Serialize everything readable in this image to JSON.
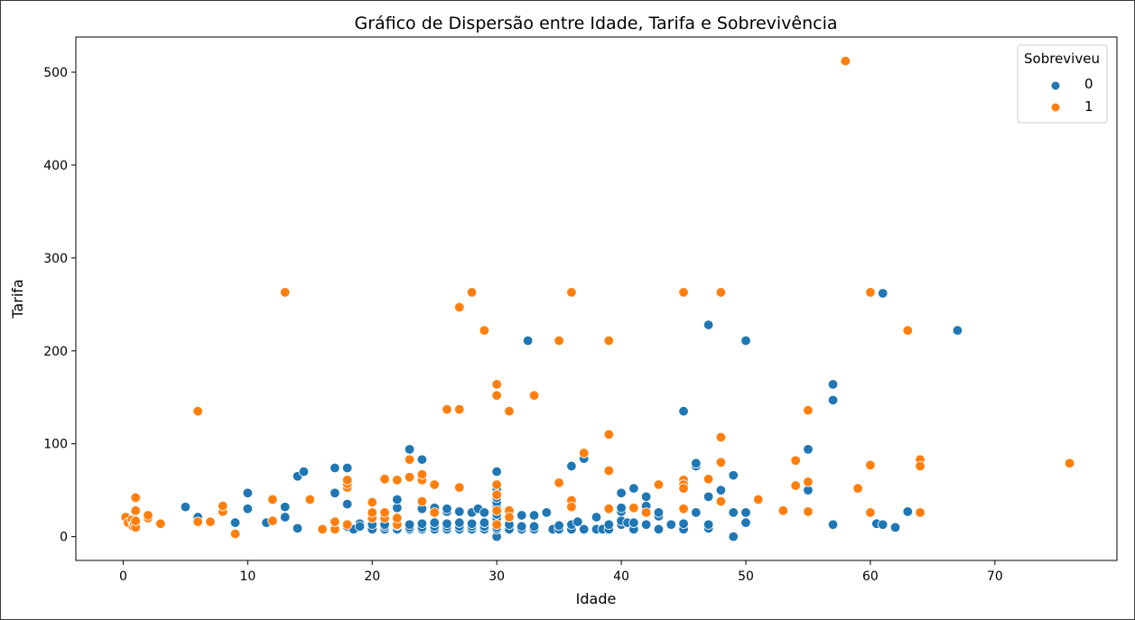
{
  "chart_data": {
    "type": "scatter",
    "title": "Gráfico de Dispersão entre Idade, Tarifa e Sobrevivência",
    "xlabel": "Idade",
    "ylabel": "Tarifa",
    "xlim": [
      -3.8,
      79.8
    ],
    "ylim": [
      -25.6,
      537.9
    ],
    "xticks": [
      0,
      10,
      20,
      30,
      40,
      50,
      60,
      70
    ],
    "yticks": [
      0,
      100,
      200,
      300,
      400,
      500
    ],
    "grid": false,
    "legend": {
      "title": "Sobreviveu",
      "placement": "top-right",
      "entries": [
        "0",
        "1"
      ]
    },
    "series": [
      {
        "name": "0",
        "color": "#1f77b4",
        "points": [
          [
            5,
            32
          ],
          [
            6,
            21
          ],
          [
            9,
            15
          ],
          [
            10,
            30
          ],
          [
            10,
            47
          ],
          [
            11.5,
            15
          ],
          [
            13,
            21
          ],
          [
            13,
            32
          ],
          [
            14,
            9
          ],
          [
            14,
            65
          ],
          [
            14.5,
            70
          ],
          [
            17,
            47
          ],
          [
            17,
            74
          ],
          [
            18,
            74
          ],
          [
            18,
            35
          ],
          [
            18,
            11
          ],
          [
            18.5,
            8
          ],
          [
            19,
            14
          ],
          [
            19,
            11
          ],
          [
            20,
            8
          ],
          [
            20,
            13
          ],
          [
            21,
            8
          ],
          [
            21,
            11
          ],
          [
            21,
            13
          ],
          [
            22,
            8
          ],
          [
            22,
            12
          ],
          [
            22,
            31
          ],
          [
            22,
            40
          ],
          [
            23,
            8
          ],
          [
            23,
            10
          ],
          [
            23,
            13
          ],
          [
            23,
            94
          ],
          [
            24,
            8
          ],
          [
            24,
            10
          ],
          [
            24,
            14
          ],
          [
            24,
            30
          ],
          [
            24,
            83
          ],
          [
            25,
            8
          ],
          [
            25,
            11
          ],
          [
            25,
            15
          ],
          [
            25,
            31
          ],
          [
            26,
            8
          ],
          [
            26,
            11
          ],
          [
            26,
            14
          ],
          [
            26,
            27
          ],
          [
            26,
            30
          ],
          [
            27,
            8
          ],
          [
            27,
            11
          ],
          [
            27,
            15
          ],
          [
            27,
            27
          ],
          [
            28,
            8
          ],
          [
            28,
            11
          ],
          [
            28,
            14
          ],
          [
            28,
            26
          ],
          [
            28.5,
            30
          ],
          [
            29,
            8
          ],
          [
            29,
            11
          ],
          [
            29,
            15
          ],
          [
            29,
            26
          ],
          [
            30,
            0
          ],
          [
            30,
            8
          ],
          [
            30,
            10
          ],
          [
            30,
            13
          ],
          [
            30,
            16
          ],
          [
            30,
            20
          ],
          [
            30,
            24
          ],
          [
            30,
            28
          ],
          [
            30,
            33
          ],
          [
            30,
            37
          ],
          [
            30,
            42
          ],
          [
            30,
            47
          ],
          [
            30,
            52
          ],
          [
            30,
            70
          ],
          [
            31,
            8
          ],
          [
            31,
            13
          ],
          [
            31,
            21
          ],
          [
            32,
            8
          ],
          [
            32,
            11
          ],
          [
            32,
            23
          ],
          [
            32.5,
            211
          ],
          [
            33,
            8
          ],
          [
            33,
            11
          ],
          [
            33,
            23
          ],
          [
            34,
            26
          ],
          [
            34.5,
            8
          ],
          [
            35,
            8
          ],
          [
            35,
            12
          ],
          [
            36,
            8
          ],
          [
            36,
            13
          ],
          [
            36,
            76
          ],
          [
            36.5,
            16
          ],
          [
            37,
            8
          ],
          [
            37,
            84
          ],
          [
            38,
            8
          ],
          [
            38,
            21
          ],
          [
            38.5,
            8
          ],
          [
            39,
            8
          ],
          [
            39,
            13
          ],
          [
            40,
            13
          ],
          [
            40,
            17
          ],
          [
            40,
            27
          ],
          [
            40,
            31
          ],
          [
            40,
            47
          ],
          [
            40.5,
            15
          ],
          [
            41,
            8
          ],
          [
            41,
            15
          ],
          [
            41,
            52
          ],
          [
            42,
            13
          ],
          [
            42,
            33
          ],
          [
            42,
            43
          ],
          [
            43,
            8
          ],
          [
            43,
            22
          ],
          [
            43,
            26
          ],
          [
            44,
            13
          ],
          [
            45,
            8
          ],
          [
            45,
            14
          ],
          [
            45,
            135
          ],
          [
            46,
            26
          ],
          [
            46,
            76
          ],
          [
            46,
            79
          ],
          [
            47,
            9
          ],
          [
            47,
            13
          ],
          [
            47,
            43
          ],
          [
            47,
            228
          ],
          [
            48,
            50
          ],
          [
            49,
            0
          ],
          [
            49,
            26
          ],
          [
            49,
            66
          ],
          [
            50,
            15
          ],
          [
            50,
            26
          ],
          [
            50,
            211
          ],
          [
            55,
            50
          ],
          [
            55,
            94
          ],
          [
            57,
            13
          ],
          [
            57,
            147
          ],
          [
            57,
            164
          ],
          [
            60.5,
            14
          ],
          [
            61,
            13
          ],
          [
            61,
            262
          ],
          [
            62,
            10
          ],
          [
            63,
            27
          ],
          [
            67,
            222
          ]
        ]
      },
      {
        "name": "1",
        "color": "#ff7f0e",
        "points": [
          [
            0.2,
            21
          ],
          [
            0.4,
            15
          ],
          [
            0.7,
            18
          ],
          [
            0.8,
            13
          ],
          [
            0.8,
            11
          ],
          [
            0.9,
            14
          ],
          [
            1,
            10
          ],
          [
            1,
            17
          ],
          [
            1,
            28
          ],
          [
            1,
            42
          ],
          [
            2,
            20
          ],
          [
            2,
            23
          ],
          [
            3,
            14
          ],
          [
            6,
            16
          ],
          [
            6,
            135
          ],
          [
            7,
            16
          ],
          [
            8,
            27
          ],
          [
            8,
            33
          ],
          [
            9,
            3
          ],
          [
            12,
            17
          ],
          [
            12,
            40
          ],
          [
            13,
            263
          ],
          [
            15,
            40
          ],
          [
            16,
            8
          ],
          [
            17,
            8
          ],
          [
            17,
            16
          ],
          [
            18,
            13
          ],
          [
            18,
            53
          ],
          [
            18,
            57
          ],
          [
            18,
            61
          ],
          [
            20,
            20
          ],
          [
            20,
            26
          ],
          [
            20,
            37
          ],
          [
            21,
            20
          ],
          [
            21,
            26
          ],
          [
            21,
            62
          ],
          [
            22,
            13
          ],
          [
            22,
            20
          ],
          [
            22,
            61
          ],
          [
            23,
            64
          ],
          [
            23,
            83
          ],
          [
            24,
            38
          ],
          [
            24,
            61
          ],
          [
            24,
            67
          ],
          [
            25,
            26
          ],
          [
            25,
            56
          ],
          [
            26,
            137
          ],
          [
            27,
            247
          ],
          [
            27,
            137
          ],
          [
            27,
            53
          ],
          [
            28,
            263
          ],
          [
            29,
            222
          ],
          [
            30,
            13
          ],
          [
            30,
            28
          ],
          [
            30,
            45
          ],
          [
            30,
            56
          ],
          [
            30,
            152
          ],
          [
            30,
            164
          ],
          [
            31,
            135
          ],
          [
            31,
            28
          ],
          [
            31,
            21
          ],
          [
            33,
            152
          ],
          [
            35,
            58
          ],
          [
            35,
            211
          ],
          [
            36,
            263
          ],
          [
            36,
            39
          ],
          [
            36,
            32
          ],
          [
            37,
            90
          ],
          [
            39,
            211
          ],
          [
            39,
            110
          ],
          [
            39,
            71
          ],
          [
            39,
            30
          ],
          [
            41,
            31
          ],
          [
            42,
            26
          ],
          [
            43,
            56
          ],
          [
            45,
            263
          ],
          [
            45,
            61
          ],
          [
            45,
            56
          ],
          [
            45,
            52
          ],
          [
            45,
            30
          ],
          [
            47,
            62
          ],
          [
            48,
            263
          ],
          [
            48,
            107
          ],
          [
            48,
            80
          ],
          [
            48,
            38
          ],
          [
            51,
            40
          ],
          [
            53,
            28
          ],
          [
            54,
            82
          ],
          [
            54,
            55
          ],
          [
            55,
            136
          ],
          [
            55,
            59
          ],
          [
            55,
            27
          ],
          [
            58,
            512
          ],
          [
            59,
            52
          ],
          [
            60,
            263
          ],
          [
            60,
            77
          ],
          [
            60,
            26
          ],
          [
            63,
            222
          ],
          [
            64,
            83
          ],
          [
            64,
            76
          ],
          [
            64,
            26
          ],
          [
            76,
            79
          ]
        ]
      }
    ]
  }
}
